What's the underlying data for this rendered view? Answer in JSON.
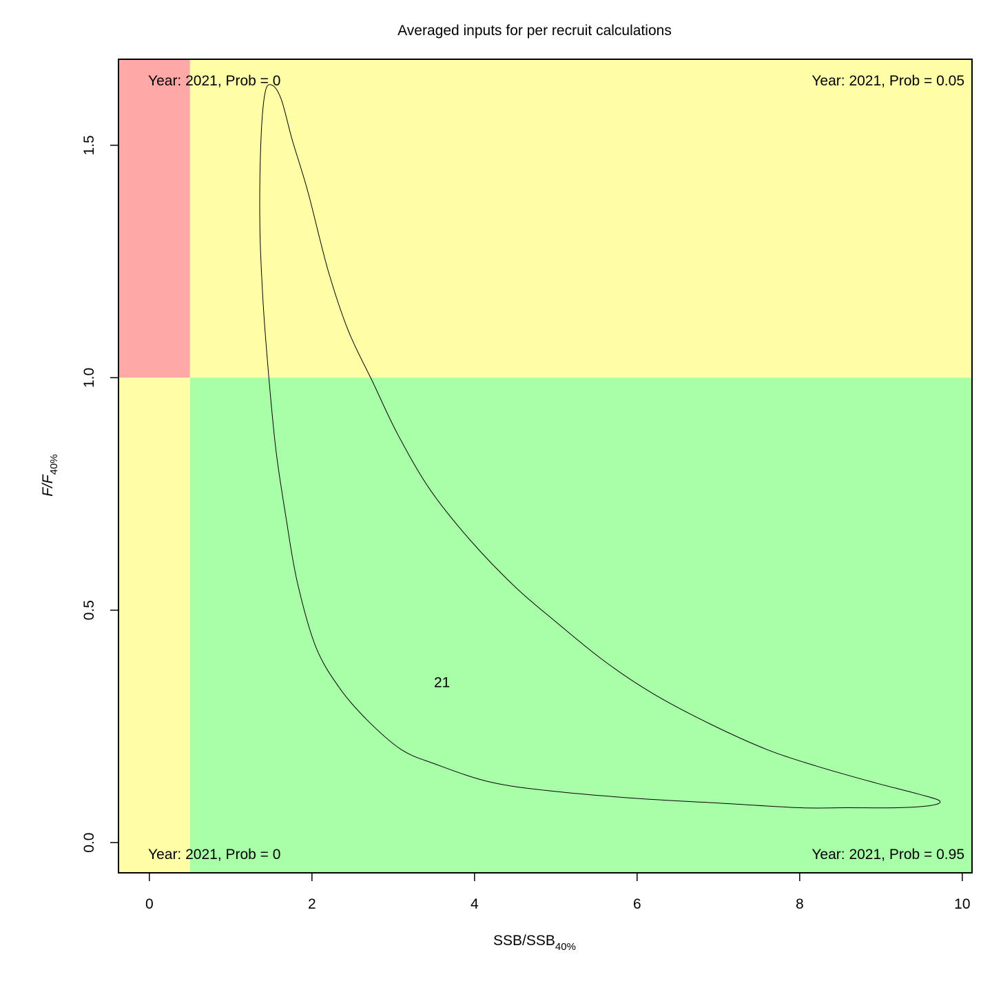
{
  "chart_data": {
    "type": "contour",
    "title": "Averaged inputs for per recruit calculations",
    "xlabel": {
      "main": "SSB/SSB",
      "sub": "40%"
    },
    "ylabel": {
      "main": "F/F",
      "sub": "40%"
    },
    "xlim": [
      -0.38,
      10.12
    ],
    "ylim": [
      -0.065,
      1.685
    ],
    "x_ticks": [
      0,
      2,
      4,
      6,
      8,
      10
    ],
    "x_tick_labels": [
      "0",
      "2",
      "4",
      "6",
      "8",
      "10"
    ],
    "y_ticks": [
      0.0,
      0.5,
      1.0,
      1.5
    ],
    "y_tick_labels": [
      "0.0",
      "0.5",
      "1.0",
      "1.5"
    ],
    "reference_lines": {
      "ssb_limit": 0.5,
      "f_limit": 1.0
    },
    "zones": [
      {
        "name": "overfished-overfishing",
        "x": [
          -0.38,
          0.5
        ],
        "y": [
          1.0,
          1.685
        ],
        "color": "#FFA8A8"
      },
      {
        "name": "overfishing",
        "x": [
          0.5,
          10.12
        ],
        "y": [
          1.0,
          1.685
        ],
        "color": "#FFFFA8"
      },
      {
        "name": "overfished",
        "x": [
          -0.38,
          0.5
        ],
        "y": [
          -0.065,
          1.0
        ],
        "color": "#FFFFA8"
      },
      {
        "name": "healthy",
        "x": [
          0.5,
          10.12
        ],
        "y": [
          -0.065,
          1.0
        ],
        "color": "#A8FFA8"
      }
    ],
    "quadrant_labels": {
      "top_left": "Year: 2021, Prob = 0",
      "top_right": "Year: 2021, Prob = 0.05",
      "bottom_left": "Year: 2021, Prob = 0",
      "bottom_right": "Year: 2021, Prob = 0.95"
    },
    "point_label": {
      "text": "21",
      "x": 3.6,
      "y": 0.345
    },
    "contour": [
      [
        1.5,
        1.63
      ],
      [
        1.62,
        1.6
      ],
      [
        1.76,
        1.51
      ],
      [
        1.95,
        1.4
      ],
      [
        2.2,
        1.23
      ],
      [
        2.45,
        1.1
      ],
      [
        2.75,
        0.99
      ],
      [
        3.05,
        0.88
      ],
      [
        3.45,
        0.76
      ],
      [
        3.95,
        0.65
      ],
      [
        4.5,
        0.55
      ],
      [
        5.0,
        0.475
      ],
      [
        5.6,
        0.39
      ],
      [
        6.2,
        0.32
      ],
      [
        6.9,
        0.255
      ],
      [
        7.6,
        0.2
      ],
      [
        8.2,
        0.165
      ],
      [
        8.9,
        0.13
      ],
      [
        9.45,
        0.105
      ],
      [
        9.72,
        0.09
      ],
      [
        9.62,
        0.08
      ],
      [
        9.2,
        0.075
      ],
      [
        8.6,
        0.075
      ],
      [
        8.0,
        0.075
      ],
      [
        7.0,
        0.085
      ],
      [
        6.0,
        0.095
      ],
      [
        5.0,
        0.11
      ],
      [
        4.2,
        0.13
      ],
      [
        3.5,
        0.17
      ],
      [
        3.1,
        0.2
      ],
      [
        2.7,
        0.26
      ],
      [
        2.35,
        0.33
      ],
      [
        2.05,
        0.42
      ],
      [
        1.82,
        0.56
      ],
      [
        1.68,
        0.7
      ],
      [
        1.56,
        0.84
      ],
      [
        1.47,
        1.0
      ],
      [
        1.4,
        1.16
      ],
      [
        1.36,
        1.32
      ],
      [
        1.37,
        1.5
      ],
      [
        1.42,
        1.61
      ],
      [
        1.5,
        1.63
      ]
    ],
    "grid": false,
    "legend": "none"
  }
}
